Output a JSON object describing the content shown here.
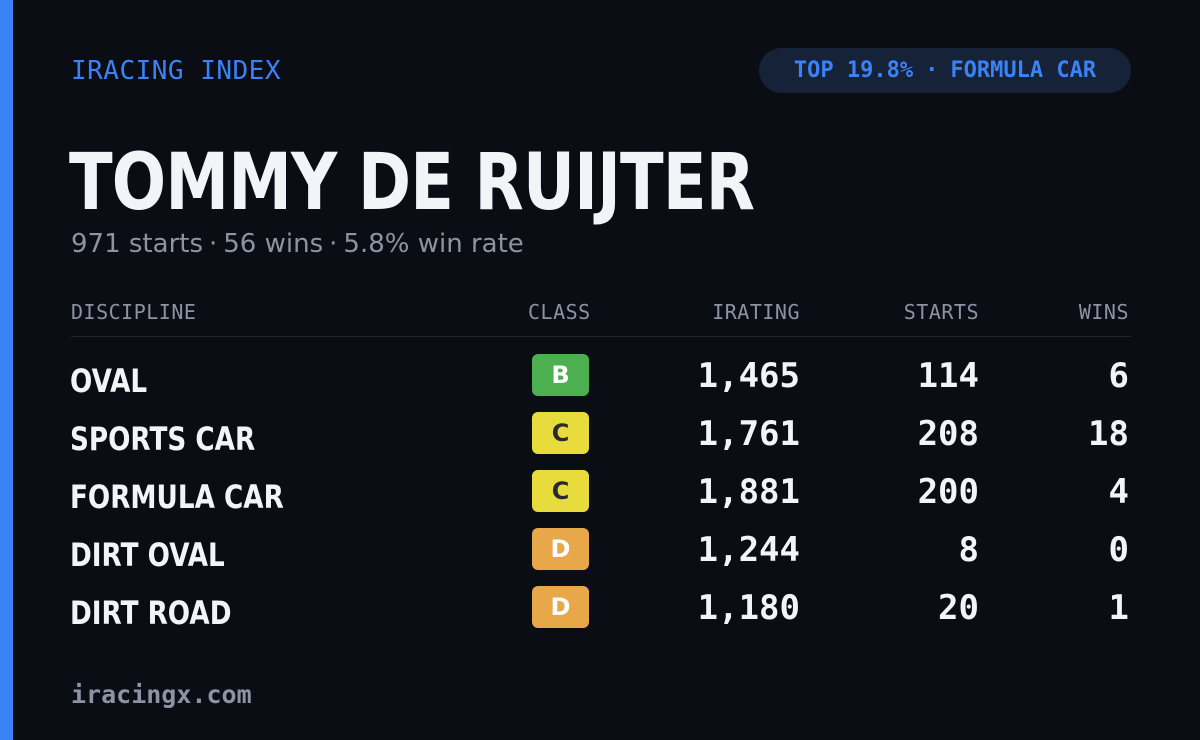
{
  "brand": "IRACING INDEX",
  "badge": {
    "rank": "TOP 19.8%",
    "separator": "·",
    "discipline": "FORMULA CAR"
  },
  "driver": {
    "name": "TOMMY DE RUIJTER"
  },
  "summary": {
    "starts": "971 starts",
    "wins": "56 wins",
    "win_rate": "5.8% win rate",
    "separator": "·"
  },
  "table": {
    "headers": {
      "discipline": "DISCIPLINE",
      "class": "CLASS",
      "irating": "IRATING",
      "starts": "STARTS",
      "wins": "WINS"
    },
    "rows": [
      {
        "discipline": "OVAL",
        "class": "B",
        "irating": "1,465",
        "starts": "114",
        "wins": "6"
      },
      {
        "discipline": "SPORTS CAR",
        "class": "C",
        "irating": "1,761",
        "starts": "208",
        "wins": "18"
      },
      {
        "discipline": "FORMULA CAR",
        "class": "C",
        "irating": "1,881",
        "starts": "200",
        "wins": "4"
      },
      {
        "discipline": "DIRT OVAL",
        "class": "D",
        "irating": "1,244",
        "starts": "8",
        "wins": "0"
      },
      {
        "discipline": "DIRT ROAD",
        "class": "D",
        "irating": "1,180",
        "starts": "20",
        "wins": "1"
      }
    ]
  },
  "class_colors": {
    "B": {
      "bg": "#4caf50",
      "fg": "#ffffff"
    },
    "C": {
      "bg": "#e8dc3c",
      "fg": "#2a2a2a"
    },
    "D": {
      "bg": "#e8a84a",
      "fg": "#ffffff"
    }
  },
  "colors": {
    "accent": "#3b82f6",
    "background": "#0b0d14",
    "text": "#f3f4f7",
    "muted": "#8c93a3"
  },
  "footer": "iracingx.com"
}
